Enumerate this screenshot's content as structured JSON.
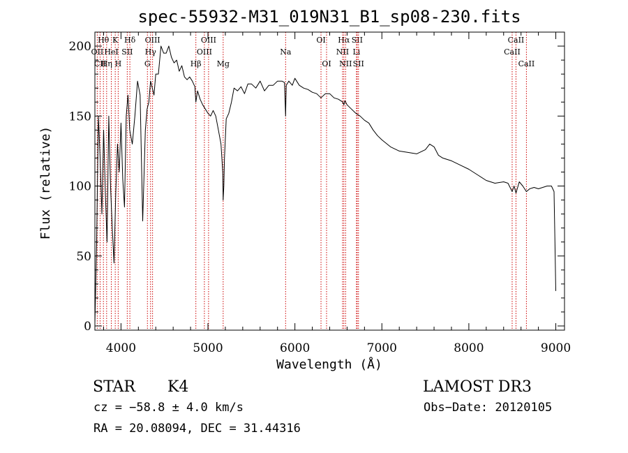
{
  "chart_data": {
    "type": "line",
    "title": "spec-55932-M31_019N31_B1_sp08-230.fits",
    "xlabel": "Wavelength (Å)",
    "ylabel": "Flux (relative)",
    "xlim": [
      3700,
      9100
    ],
    "ylim": [
      -3,
      210
    ],
    "x_ticks": [
      4000,
      5000,
      6000,
      7000,
      8000,
      9000
    ],
    "y_ticks": [
      0,
      50,
      100,
      150,
      200
    ],
    "series": [
      {
        "name": "spectrum",
        "x": [
          3700,
          3720,
          3740,
          3760,
          3780,
          3800,
          3820,
          3840,
          3860,
          3880,
          3900,
          3920,
          3940,
          3960,
          3980,
          4000,
          4020,
          4040,
          4060,
          4080,
          4100,
          4130,
          4160,
          4190,
          4220,
          4250,
          4280,
          4300,
          4320,
          4340,
          4360,
          4380,
          4400,
          4430,
          4460,
          4490,
          4520,
          4550,
          4580,
          4610,
          4640,
          4670,
          4700,
          4730,
          4760,
          4790,
          4820,
          4850,
          4861,
          4880,
          4910,
          4940,
          4970,
          5000,
          5030,
          5060,
          5090,
          5120,
          5150,
          5170,
          5175,
          5183,
          5190,
          5210,
          5240,
          5270,
          5300,
          5340,
          5380,
          5420,
          5460,
          5500,
          5550,
          5600,
          5650,
          5700,
          5750,
          5800,
          5850,
          5880,
          5893,
          5900,
          5930,
          5970,
          6000,
          6050,
          6100,
          6150,
          6200,
          6250,
          6300,
          6350,
          6400,
          6450,
          6500,
          6550,
          6563,
          6575,
          6600,
          6650,
          6700,
          6750,
          6800,
          6850,
          6900,
          6950,
          7000,
          7100,
          7200,
          7300,
          7400,
          7500,
          7550,
          7600,
          7650,
          7700,
          7800,
          7900,
          8000,
          8100,
          8200,
          8300,
          8400,
          8450,
          8498,
          8520,
          8542,
          8580,
          8620,
          8662,
          8700,
          8750,
          8800,
          8850,
          8900,
          8950,
          8980,
          8990,
          9000
        ],
        "values": [
          2,
          60,
          150,
          120,
          80,
          140,
          95,
          60,
          150,
          100,
          70,
          45,
          95,
          130,
          110,
          145,
          105,
          85,
          150,
          165,
          140,
          130,
          150,
          175,
          165,
          75,
          140,
          155,
          160,
          175,
          170,
          165,
          180,
          180,
          200,
          195,
          195,
          200,
          192,
          188,
          190,
          182,
          186,
          178,
          176,
          178,
          175,
          171,
          160,
          168,
          162,
          158,
          155,
          152,
          150,
          154,
          150,
          140,
          130,
          110,
          90,
          100,
          120,
          148,
          152,
          160,
          170,
          168,
          171,
          166,
          173,
          173,
          170,
          175,
          168,
          172,
          172,
          175,
          175,
          174,
          150,
          172,
          175,
          172,
          177,
          172,
          170,
          169,
          167,
          166,
          163,
          166,
          166,
          163,
          162,
          160,
          158,
          161,
          158,
          155,
          152,
          150,
          147,
          145,
          140,
          136,
          133,
          128,
          125,
          124,
          123,
          126,
          130,
          128,
          122,
          120,
          118,
          115,
          112,
          108,
          104,
          102,
          103,
          102,
          96,
          100,
          95,
          103,
          100,
          96,
          98,
          99,
          98,
          99,
          100,
          100,
          96,
          60,
          25
        ]
      }
    ],
    "line_markers": [
      {
        "label": "Hθ",
        "wavelength": 3798,
        "row": 0
      },
      {
        "label": "OII",
        "wavelength": 3727,
        "row": 1
      },
      {
        "label": "CII",
        "wavelength": 3760,
        "row": 2
      },
      {
        "label": "K",
        "wavelength": 3934,
        "row": 0
      },
      {
        "label": "HeI",
        "wavelength": 3889,
        "row": 1
      },
      {
        "label": "Hη",
        "wavelength": 3835,
        "row": 2
      },
      {
        "label": "H",
        "wavelength": 3968,
        "row": 2
      },
      {
        "label": "SII",
        "wavelength": 4072,
        "row": 1
      },
      {
        "label": "Hδ",
        "wavelength": 4102,
        "row": 0
      },
      {
        "label": "OIII",
        "wavelength": 4363,
        "row": 0
      },
      {
        "label": "Hγ",
        "wavelength": 4340,
        "row": 1
      },
      {
        "label": "G",
        "wavelength": 4304,
        "row": 2
      },
      {
        "label": "OIII",
        "wavelength": 5007,
        "row": 0
      },
      {
        "label": "OIII",
        "wavelength": 4959,
        "row": 1
      },
      {
        "label": "Hβ",
        "wavelength": 4861,
        "row": 2
      },
      {
        "label": "Mg",
        "wavelength": 5175,
        "row": 2
      },
      {
        "label": "Na",
        "wavelength": 5893,
        "row": 1
      },
      {
        "label": "OI",
        "wavelength": 6300,
        "row": 0
      },
      {
        "label": "OI",
        "wavelength": 6364,
        "row": 2
      },
      {
        "label": "Hα",
        "wavelength": 6563,
        "row": 0
      },
      {
        "label": "SII",
        "wavelength": 6716,
        "row": 0
      },
      {
        "label": "NII",
        "wavelength": 6548,
        "row": 1
      },
      {
        "label": "Li",
        "wavelength": 6708,
        "row": 1
      },
      {
        "label": "NII",
        "wavelength": 6583,
        "row": 2
      },
      {
        "label": "SII",
        "wavelength": 6731,
        "row": 2
      },
      {
        "label": "CaII",
        "wavelength": 8542,
        "row": 0
      },
      {
        "label": "CaII",
        "wavelength": 8498,
        "row": 1
      },
      {
        "label": "CaII",
        "wavelength": 8662,
        "row": 2
      }
    ],
    "line_marker_color": "#cc0000"
  },
  "info": {
    "object_class": "STAR",
    "subclass": "K4",
    "survey": "LAMOST DR3",
    "cz": "cz = −58.8 ± 4.0 km/s",
    "obs_date": "Obs−Date: 20120105",
    "coords": "RA =  20.08094, DEC =  31.44316"
  }
}
